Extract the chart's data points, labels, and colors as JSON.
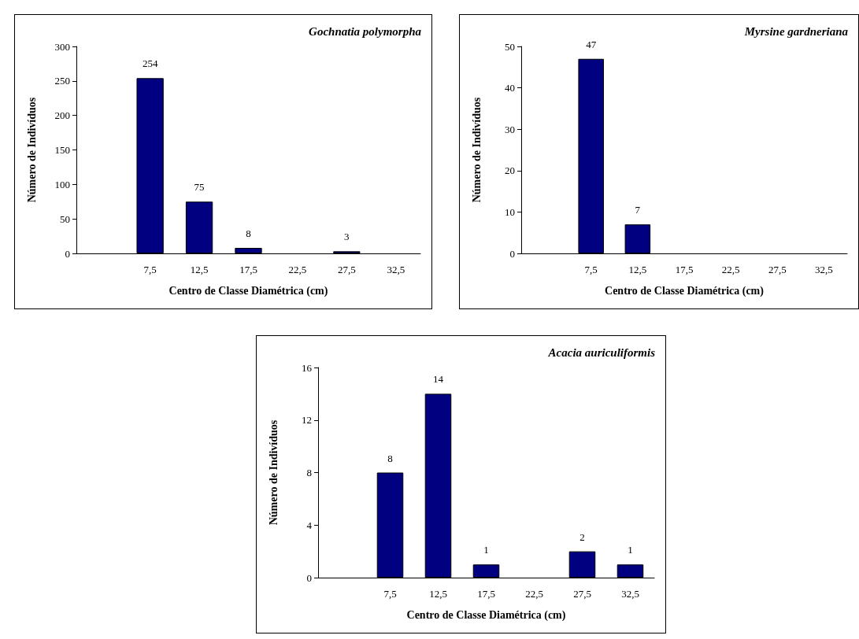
{
  "chart_data": [
    {
      "type": "bar",
      "title": "Gochnatia polymorpha",
      "xlabel": "Centro de Classe Diamétrica (cm)",
      "ylabel": "Número de Indivíduos",
      "categories": [
        null,
        "7,5",
        "12,5",
        "17,5",
        "22,5",
        "27,5",
        "32,5"
      ],
      "values": [
        null,
        254,
        75,
        8,
        0,
        3,
        0
      ],
      "value_labels": [
        null,
        "254",
        "75",
        "8",
        null,
        "3",
        null
      ],
      "color": "#000080",
      "ylim": [
        0,
        300
      ],
      "yticks": [
        0,
        50,
        100,
        150,
        200,
        250,
        300
      ]
    },
    {
      "type": "bar",
      "title": "Myrsine gardneriana",
      "xlabel": "Centro de Classe Diamétrica (cm)",
      "ylabel": "Número de Indivíduos",
      "categories": [
        null,
        "7,5",
        "12,5",
        "17,5",
        "22,5",
        "27,5",
        "32,5"
      ],
      "values": [
        null,
        47,
        7,
        0,
        0,
        0,
        0
      ],
      "value_labels": [
        null,
        "47",
        "7",
        null,
        null,
        null,
        null
      ],
      "color": "#000080",
      "ylim": [
        0,
        50
      ],
      "yticks": [
        0,
        10,
        20,
        30,
        40,
        50
      ]
    },
    {
      "type": "bar",
      "title": "Acacia auriculiformis",
      "xlabel": "Centro de Classe Diamétrica (cm)",
      "ylabel": "Número de Indivíduos",
      "categories": [
        null,
        "7,5",
        "12,5",
        "17,5",
        "22,5",
        "27,5",
        "32,5"
      ],
      "values": [
        null,
        8,
        14,
        1,
        0,
        2,
        1
      ],
      "value_labels": [
        null,
        "8",
        "14",
        "1",
        null,
        "2",
        "1"
      ],
      "color": "#000080",
      "ylim": [
        0,
        16
      ],
      "yticks": [
        0,
        4,
        8,
        12,
        16
      ]
    }
  ]
}
